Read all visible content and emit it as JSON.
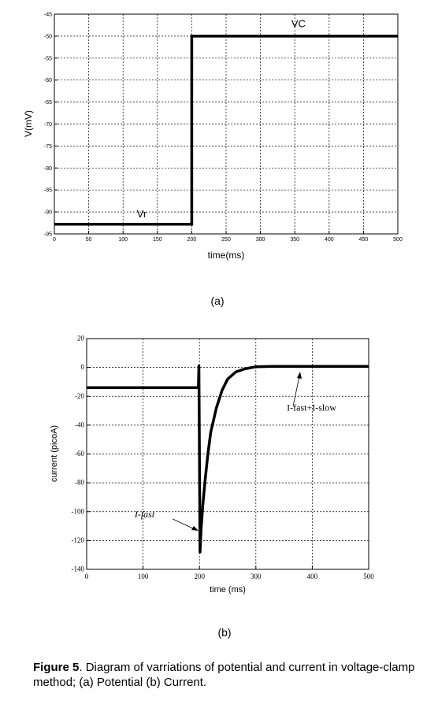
{
  "chart_data": [
    {
      "type": "line",
      "panel_label": "(a)",
      "xlabel": "time(ms)",
      "ylabel": "V(mV)",
      "xlim": [
        0,
        500
      ],
      "ylim": [
        -95,
        -45
      ],
      "x_ticks": [
        "0",
        "50",
        "100",
        "150",
        "200",
        "250",
        "300",
        "350",
        "400",
        "450",
        "500"
      ],
      "y_ticks": [
        "-45",
        "-50",
        "-55",
        "-60",
        "-65",
        "-70",
        "-75",
        "-80",
        "-85",
        "-90",
        "-95"
      ],
      "grid": true,
      "series": [
        {
          "x": [
            0,
            200,
            200,
            500
          ],
          "y": [
            -92.8,
            -92.8,
            -50,
            -50
          ]
        }
      ],
      "annotations": [
        {
          "text": "VC",
          "x": 345,
          "y": -48
        },
        {
          "text": "Vr",
          "x": 120,
          "y": -91.2
        }
      ]
    },
    {
      "type": "line",
      "panel_label": "(b)",
      "xlabel": "time (ms)",
      "ylabel": "current (picoA)",
      "xlim": [
        0,
        500
      ],
      "ylim": [
        -140,
        20
      ],
      "x_ticks": [
        "0",
        "100",
        "200",
        "300",
        "400",
        "500"
      ],
      "y_ticks": [
        "20",
        "0",
        "-20",
        "-40",
        "-60",
        "-80",
        "-100",
        "-120",
        "-140"
      ],
      "grid": true,
      "series": [
        {
          "x": [
            0,
            198,
            199,
            201,
            203,
            206,
            210,
            215,
            220,
            230,
            240,
            250,
            265,
            280,
            300,
            330,
            500
          ],
          "y": [
            -14,
            -14,
            1,
            -128,
            -112,
            -95,
            -78,
            -60,
            -45,
            -28,
            -16,
            -8,
            -3,
            -1,
            0.5,
            0.8,
            0.8
          ]
        }
      ],
      "annotations": [
        {
          "text": "I-fast",
          "x": 85,
          "y": -104
        },
        {
          "text": "I-fast+I-slow",
          "x": 355,
          "y": -30
        }
      ]
    }
  ],
  "caption": {
    "label": "Figure 5",
    "text": ". Diagram of varriations of potential and current in voltage-clamp method; (a) Potential (b) Current."
  }
}
